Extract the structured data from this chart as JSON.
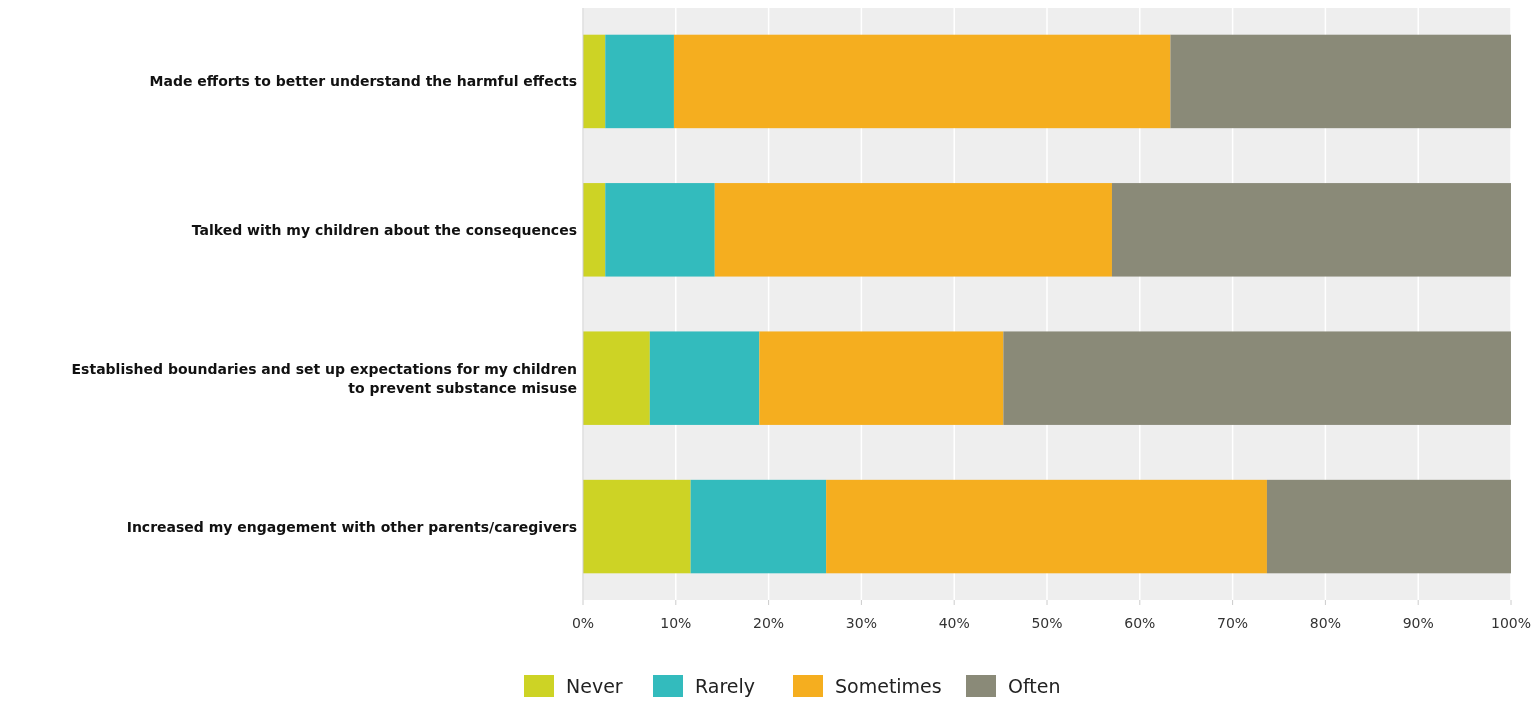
{
  "chart_data": {
    "type": "bar",
    "orientation": "horizontal",
    "stacked": true,
    "categories": [
      "Made efforts to better understand the harmful effects",
      "Talked with my children about the consequences",
      "Established boundaries and set up expectations for my children to prevent substance misuse",
      "Increased my engagement with other parents/caregivers"
    ],
    "series": [
      {
        "name": "Never",
        "color": "#cdd325",
        "values": [
          2.4,
          2.4,
          7.2,
          11.6
        ]
      },
      {
        "name": "Rarely",
        "color": "#33bbbd",
        "values": [
          7.4,
          11.8,
          11.8,
          14.6
        ]
      },
      {
        "name": "Sometimes",
        "color": "#f5ae1f",
        "values": [
          53.5,
          42.8,
          26.3,
          47.5
        ]
      },
      {
        "name": "Often",
        "color": "#8a8a78",
        "values": [
          36.7,
          43.0,
          54.7,
          26.3
        ]
      }
    ],
    "xlim": [
      0,
      100
    ],
    "xticks": [
      {
        "value": 0,
        "label": "0%"
      },
      {
        "value": 10,
        "label": "10%"
      },
      {
        "value": 20,
        "label": "20%"
      },
      {
        "value": 30,
        "label": "30%"
      },
      {
        "value": 40,
        "label": "40%"
      },
      {
        "value": 50,
        "label": "50%"
      },
      {
        "value": 60,
        "label": "60%"
      },
      {
        "value": 70,
        "label": "70%"
      },
      {
        "value": 80,
        "label": "80%"
      },
      {
        "value": 90,
        "label": "90%"
      },
      {
        "value": 100,
        "label": "100%"
      }
    ],
    "grid": "x",
    "legend": "bottom"
  }
}
